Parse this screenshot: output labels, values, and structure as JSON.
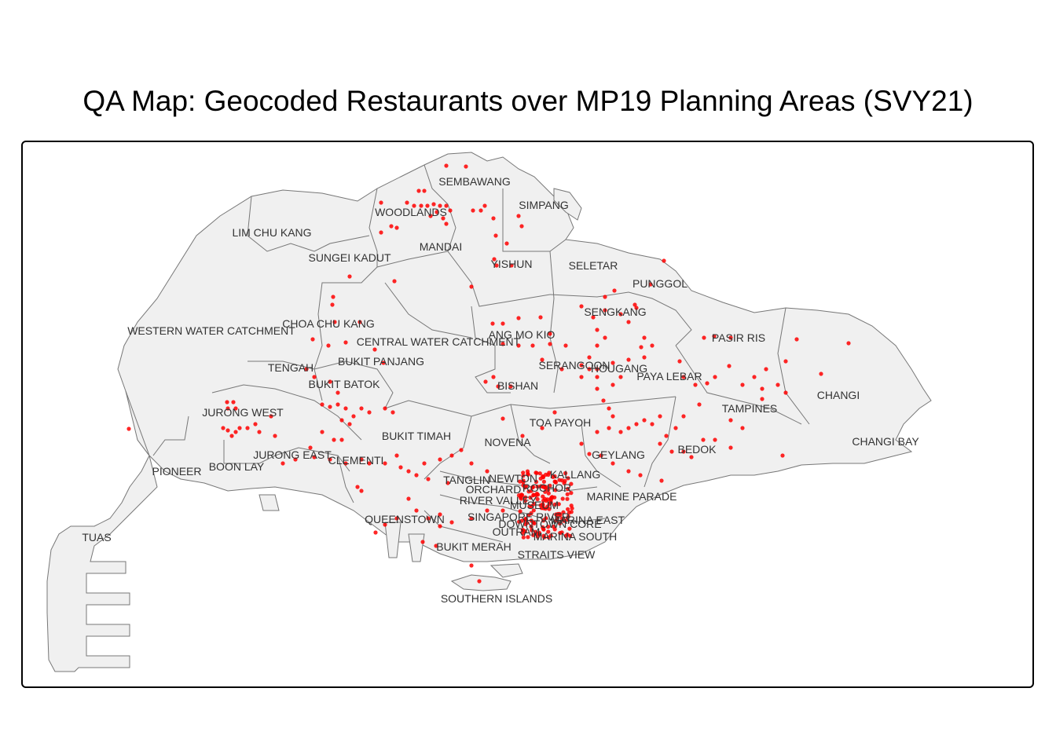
{
  "title": "QA Map: Geocoded Restaurants over MP19 Planning Areas (SVY21)",
  "colors": {
    "land": "#f0f0f0",
    "boundary": "#777777",
    "frame": "#000000",
    "point": "#ff0000",
    "label": "#333333"
  },
  "planning_areas": [
    {
      "name": "SEMBAWANG"
    },
    {
      "name": "WOODLANDS"
    },
    {
      "name": "SIMPANG"
    },
    {
      "name": "LIM CHU KANG"
    },
    {
      "name": "MANDAI"
    },
    {
      "name": "SUNGEI KADUT"
    },
    {
      "name": "YISHUN"
    },
    {
      "name": "SELETAR"
    },
    {
      "name": "PUNGGOL"
    },
    {
      "name": "SENGKANG"
    },
    {
      "name": "WESTERN WATER CATCHMENT"
    },
    {
      "name": "CHOA CHU KANG"
    },
    {
      "name": "CENTRAL WATER CATCHMENT"
    },
    {
      "name": "ANG MO KIO"
    },
    {
      "name": "PASIR RIS"
    },
    {
      "name": "TENGAH"
    },
    {
      "name": "BUKIT PANJANG"
    },
    {
      "name": "SERANGOON"
    },
    {
      "name": "HOUGANG"
    },
    {
      "name": "PAYA LEBAR"
    },
    {
      "name": "BUKIT BATOK"
    },
    {
      "name": "BISHAN"
    },
    {
      "name": "CHANGI"
    },
    {
      "name": "TAMPINES"
    },
    {
      "name": "JURONG WEST"
    },
    {
      "name": "TOA PAYOH"
    },
    {
      "name": "BUKIT TIMAH"
    },
    {
      "name": "NOVENA"
    },
    {
      "name": "CHANGI BAY"
    },
    {
      "name": "BEDOK"
    },
    {
      "name": "GEYLANG"
    },
    {
      "name": "JURONG EAST"
    },
    {
      "name": "CLEMENTI"
    },
    {
      "name": "PIONEER"
    },
    {
      "name": "BOON LAY"
    },
    {
      "name": "TANGLIN"
    },
    {
      "name": "NEWTON"
    },
    {
      "name": "KALLANG"
    },
    {
      "name": "ORCHARD"
    },
    {
      "name": "ROCHOR"
    },
    {
      "name": "MARINE PARADE"
    },
    {
      "name": "RIVER VALLEY"
    },
    {
      "name": "MUSEUM"
    },
    {
      "name": "QUEENSTOWN"
    },
    {
      "name": "SINGAPORE RIVER"
    },
    {
      "name": "MARINA EAST"
    },
    {
      "name": "DOWNTOWN CORE"
    },
    {
      "name": "OUTRAM"
    },
    {
      "name": "MARINA SOUTH"
    },
    {
      "name": "TUAS"
    },
    {
      "name": "BUKIT MERAH"
    },
    {
      "name": "STRAITS VIEW"
    },
    {
      "name": "SOUTHERN ISLANDS"
    }
  ],
  "legend": "none",
  "point_layer": "geocoded-restaurants"
}
